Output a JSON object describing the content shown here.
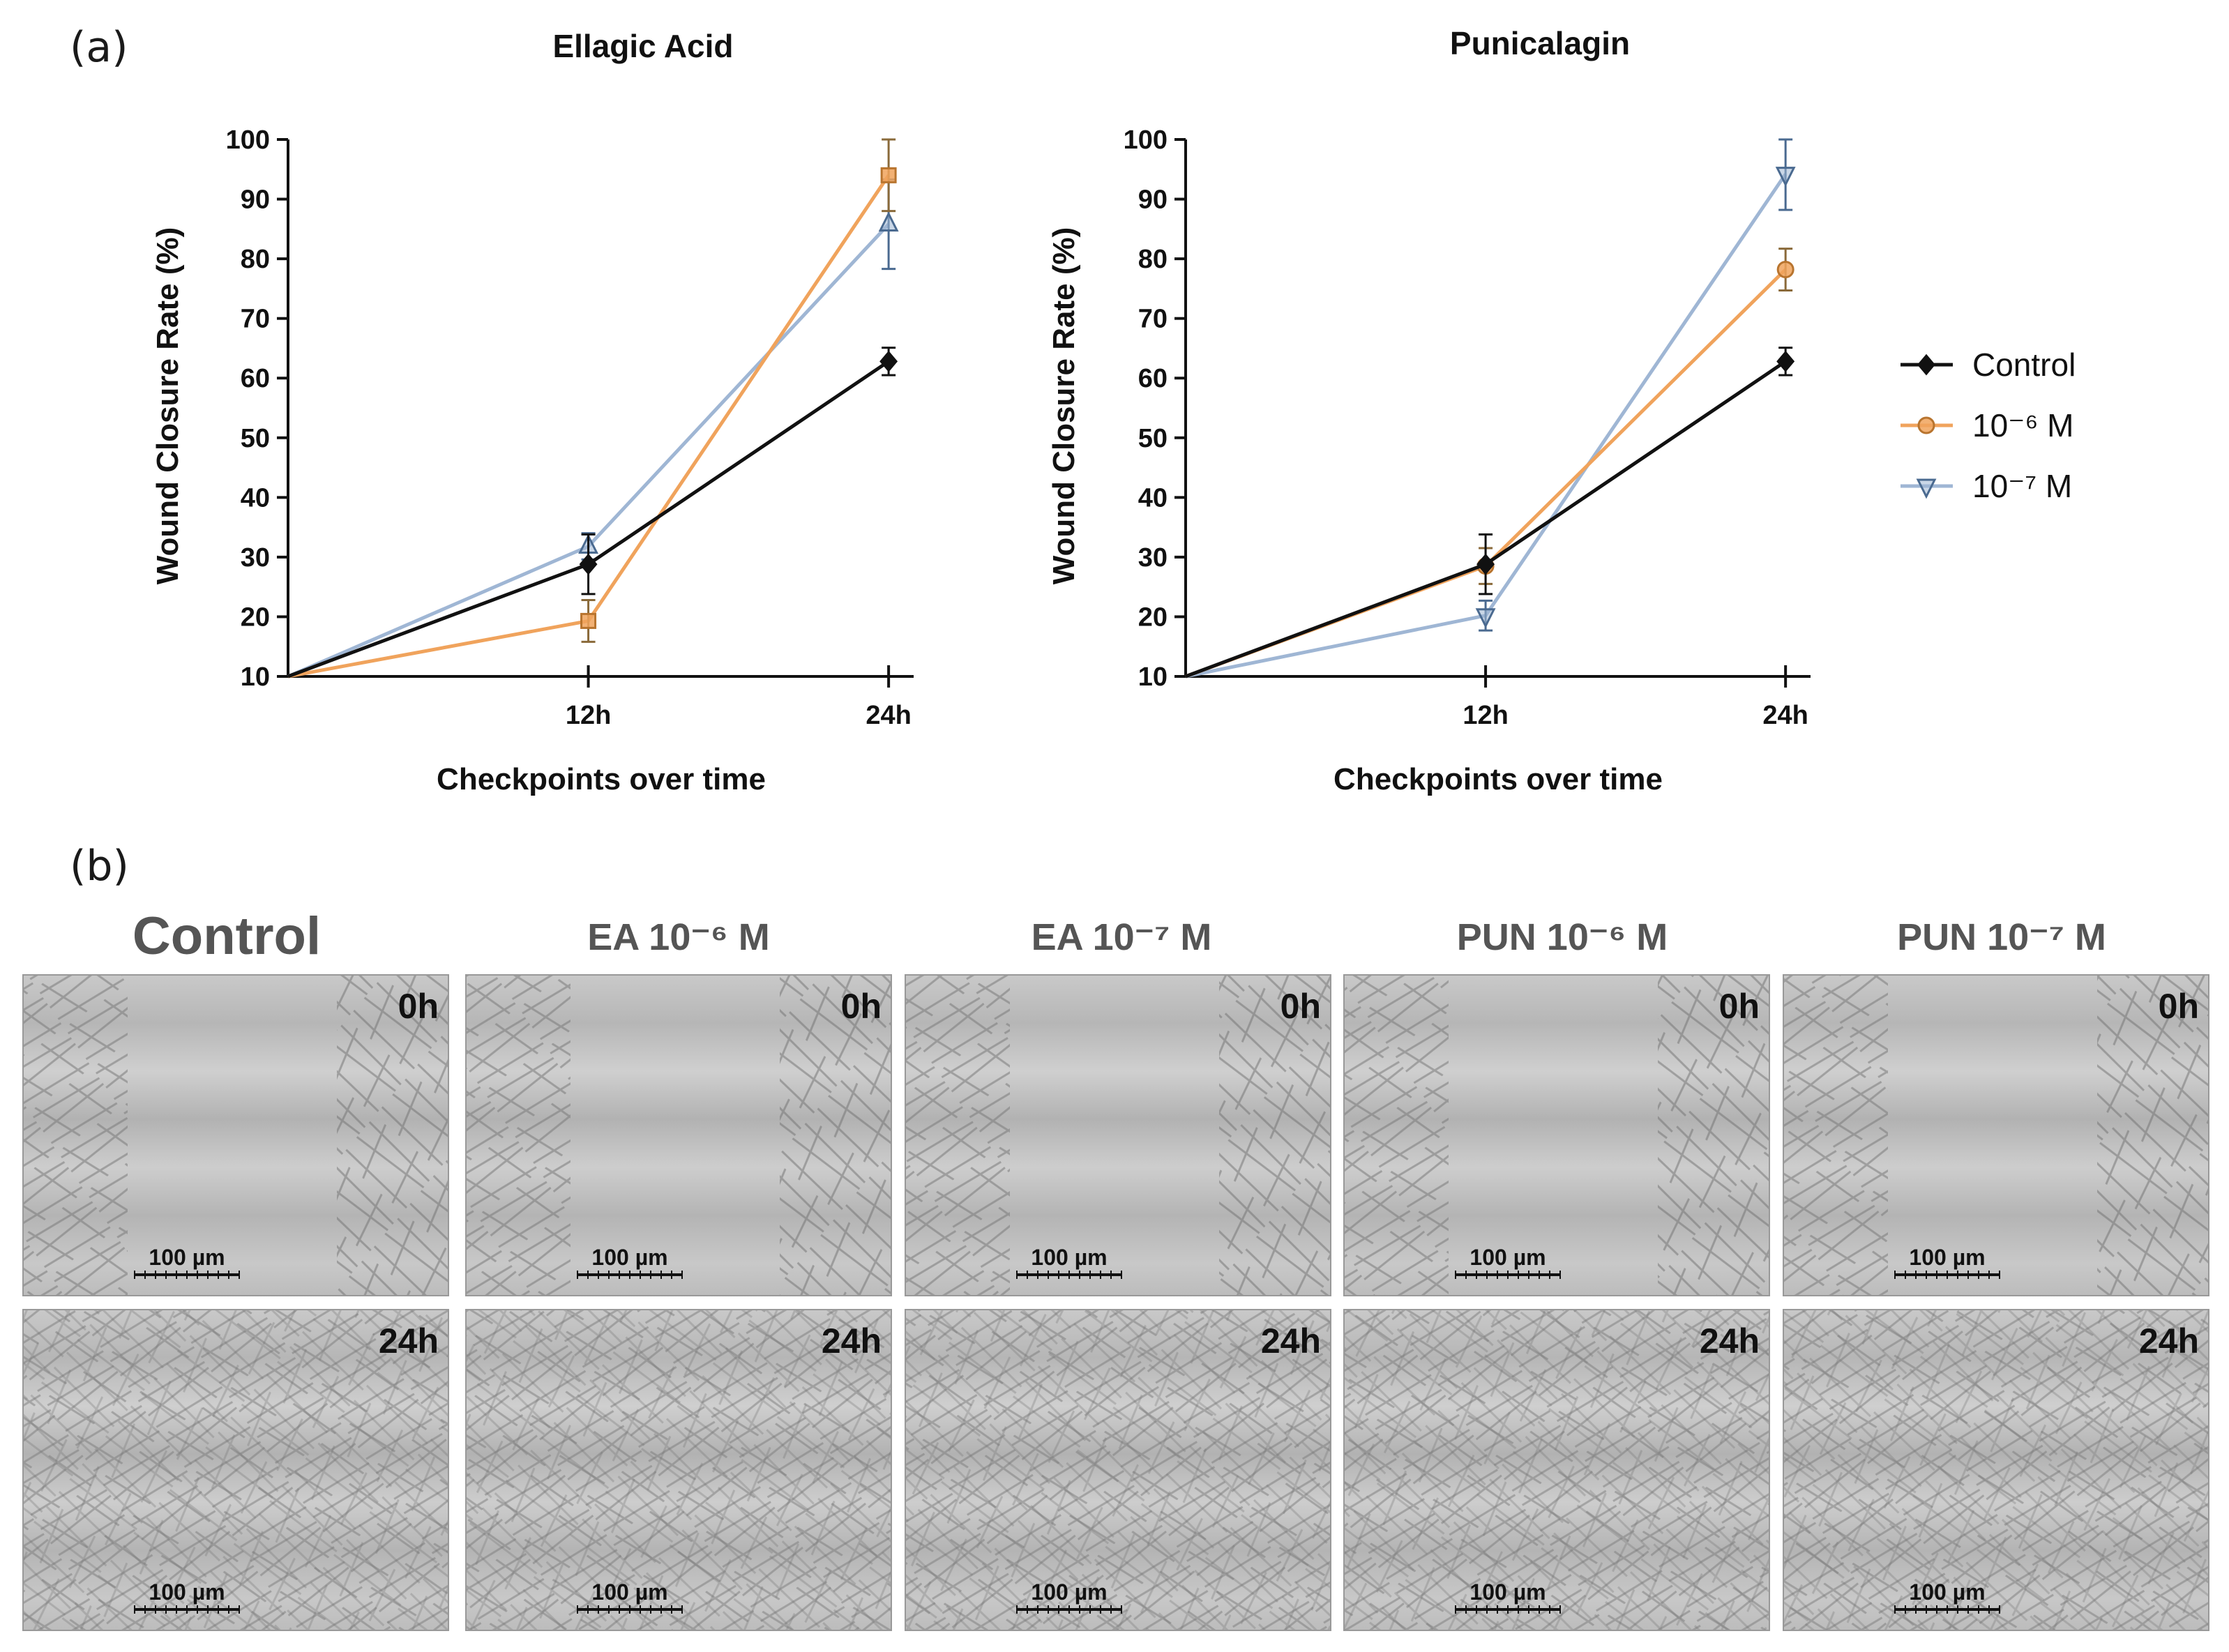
{
  "figure": {
    "label_a": "(a)",
    "label_b": "(b)"
  },
  "chart_data": [
    {
      "type": "line",
      "title": "Ellagic Acid",
      "xlabel": "Checkpoints over time",
      "ylabel": "Wound Closure Rate (%)",
      "ylim": [
        10,
        100
      ],
      "yticks": [
        10,
        20,
        30,
        40,
        50,
        60,
        70,
        80,
        90,
        100
      ],
      "x": [
        0,
        12,
        24
      ],
      "xtick_labels": [
        "12h",
        "24h"
      ],
      "series": [
        {
          "name": "Control",
          "color": "#111111",
          "marker": "diamond",
          "values": [
            10,
            28.8,
            62.8
          ],
          "errors": [
            0,
            5,
            2.3
          ]
        },
        {
          "name": "10⁻⁶ M",
          "color": "#F0A35C",
          "marker": "square",
          "values": [
            10,
            19.3,
            94
          ],
          "errors": [
            0,
            3.5,
            6
          ]
        },
        {
          "name": "10⁻⁷ M",
          "color": "#9FB6D4",
          "marker": "triangle-up",
          "values": [
            10,
            31.8,
            85.8
          ],
          "errors": [
            0,
            2.2,
            7.5
          ]
        }
      ]
    },
    {
      "type": "line",
      "title": "Punicalagin",
      "xlabel": "Checkpoints over time",
      "ylabel": "Wound Closure Rate (%)",
      "ylim": [
        10,
        100
      ],
      "yticks": [
        10,
        20,
        30,
        40,
        50,
        60,
        70,
        80,
        90,
        100
      ],
      "x": [
        0,
        12,
        24
      ],
      "xtick_labels": [
        "12h",
        "24h"
      ],
      "series": [
        {
          "name": "Control",
          "color": "#111111",
          "marker": "diamond",
          "values": [
            10,
            28.8,
            62.8
          ],
          "errors": [
            0,
            5,
            2.3
          ]
        },
        {
          "name": "10⁻⁶ M",
          "color": "#F0A35C",
          "marker": "circle",
          "values": [
            10,
            28.5,
            78.2
          ],
          "errors": [
            0,
            3,
            3.5
          ]
        },
        {
          "name": "10⁻⁷ M",
          "color": "#9FB6D4",
          "marker": "triangle-down",
          "values": [
            10,
            20.2,
            94.2
          ],
          "errors": [
            0,
            2.5,
            6
          ]
        }
      ]
    }
  ],
  "legend": [
    {
      "label": "Control",
      "color": "#111111",
      "marker": "diamond"
    },
    {
      "label": "10⁻⁶ M",
      "color": "#F0A35C",
      "marker": "circle"
    },
    {
      "label": "10⁻⁷ M",
      "color": "#9FB6D4",
      "marker": "triangle-down"
    }
  ],
  "micrographs": {
    "columns": [
      "Control",
      "EA 10⁻⁶ M",
      "EA 10⁻⁷ M",
      "PUN 10⁻⁶ M",
      "PUN 10⁻⁷ M"
    ],
    "rows": [
      "0h",
      "24h"
    ],
    "scale_bar": "100 µm"
  }
}
